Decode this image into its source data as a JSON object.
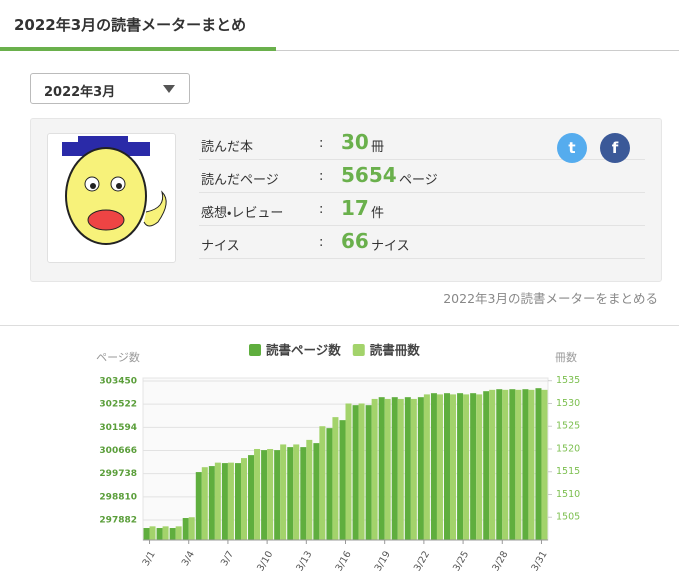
{
  "header": {
    "title": "2022年3月の読書メーターまとめ"
  },
  "month_select": {
    "label": "2022年3月"
  },
  "stats": [
    {
      "label": "読んだ本",
      "separator": ":",
      "value": 30,
      "unit": "冊"
    },
    {
      "label": "読んだページ",
      "separator": ":",
      "value": 5654,
      "unit": "ページ"
    },
    {
      "label": "感想・レビュー",
      "separator": ":",
      "value": 17,
      "unit": "件"
    },
    {
      "label": "ナイス",
      "separator": ":",
      "value": 66,
      "unit": "ナイス"
    }
  ],
  "summary_note": "2022年3月の読書メーターをまとめる",
  "chart_data": {
    "type": "bar",
    "y_label": "ページ数",
    "y2_label": "冊数",
    "categories": [
      "3/1",
      null,
      null,
      "3/4",
      null,
      null,
      "3/7",
      null,
      null,
      "3/10",
      null,
      null,
      "3/13",
      null,
      null,
      "3/16",
      null,
      null,
      "3/19",
      null,
      null,
      "3/22",
      null,
      null,
      "3/25",
      null,
      null,
      "3/28",
      null,
      null,
      "3/31"
    ],
    "series": [
      {
        "name": "読書ページ数",
        "color": "#5fae3e",
        "values": [
          297562,
          297562,
          297562,
          297962,
          299802,
          300042,
          300162,
          300162,
          300482,
          300682,
          300682,
          300802,
          300802,
          300962,
          301562,
          301882,
          302482,
          302482,
          302802,
          302802,
          302802,
          302802,
          302962,
          302962,
          302962,
          302962,
          303042,
          303122,
          303122,
          303122,
          303162
        ]
      },
      {
        "name": "読書冊数",
        "color": "#a3d36b",
        "axis": "y2",
        "values": [
          1503,
          1503,
          1503,
          1505,
          1516,
          1517,
          1517,
          1518,
          1520,
          1520,
          1521,
          1521,
          1522,
          1525,
          1527,
          1530,
          1530,
          1531,
          1531,
          1531,
          1531,
          1532,
          1532,
          1532,
          1532,
          1532,
          1533,
          1533,
          1533,
          1533,
          1533
        ]
      }
    ],
    "ylim": [
      297082,
      303570
    ],
    "yticks": [
      297882,
      298810,
      299738,
      300666,
      301594,
      302522,
      303450
    ],
    "y2lim": [
      1500,
      1535.6
    ],
    "y2ticks": [
      1505,
      1510,
      1515,
      1520,
      1525,
      1530,
      1535
    ],
    "grid": true,
    "legend": "top"
  }
}
